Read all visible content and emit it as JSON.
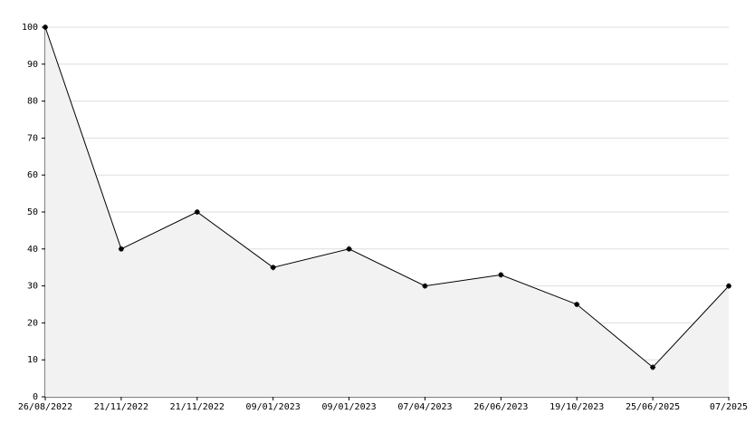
{
  "chart_data": {
    "type": "area",
    "categories": [
      "26/08/2022",
      "21/11/2022",
      "21/11/2022",
      "09/01/2023",
      "09/01/2023",
      "07/04/2023",
      "26/06/2023",
      "19/10/2023",
      "25/06/2025",
      "07/2025"
    ],
    "values": [
      100,
      40,
      50,
      35,
      40,
      30,
      33,
      25,
      8,
      30
    ],
    "color": "#000000",
    "fill": "#f2f2f2",
    "ylim": [
      0,
      100
    ],
    "yticks": [
      0,
      10,
      20,
      30,
      40,
      50,
      60,
      70,
      80,
      90,
      100
    ],
    "grid": true
  }
}
